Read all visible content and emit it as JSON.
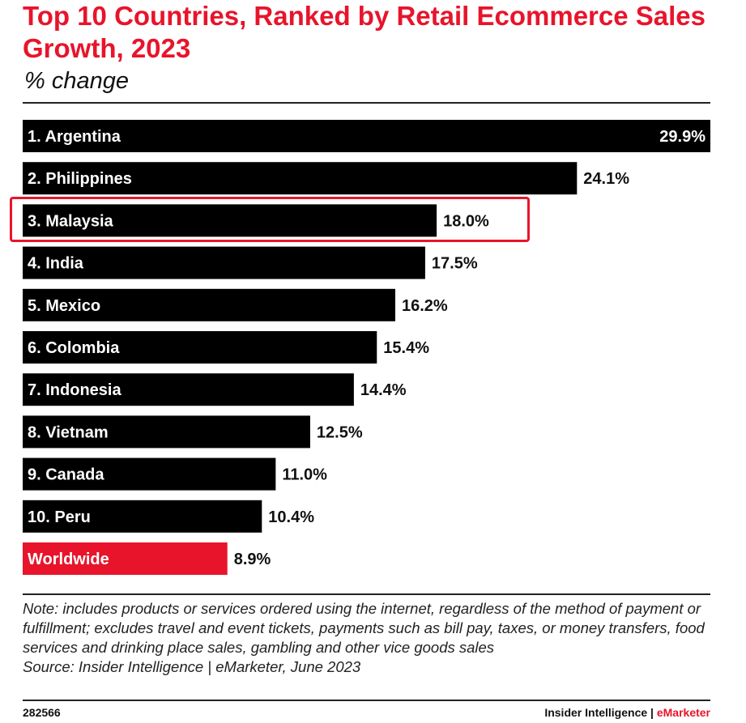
{
  "title": "Top 10 Countries, Ranked by Retail Ecommerce Sales Growth, 2023",
  "subtitle": "% change",
  "note": "Note: includes products or services ordered using the internet, regardless of the method of payment or fulfillment; excludes travel and event tickets, payments such as bill pay, taxes, or money transfers, food services and drinking place sales, gambling and other vice goods sales",
  "source": "Source: Insider Intelligence | eMarketer, June 2023",
  "footer": {
    "chart_id": "282566",
    "brand_left": "Insider Intelligence | ",
    "brand_right": "eMarketer"
  },
  "colors": {
    "bar": "#000000",
    "highlight_bar": "#e8142b",
    "title": "#e8142b",
    "callout_box": "#e8142b"
  },
  "chart_data": {
    "type": "bar",
    "orientation": "horizontal",
    "categories": [
      "1. Argentina",
      "2. Philippines",
      "3. Malaysia",
      "4. India",
      "5. Mexico",
      "6. Colombia",
      "7. Indonesia",
      "8. Vietnam",
      "9. Canada",
      "10. Peru",
      "Worldwide"
    ],
    "values": [
      29.9,
      24.1,
      18.0,
      17.5,
      16.2,
      15.4,
      14.4,
      12.5,
      11.0,
      10.4,
      8.9
    ],
    "value_labels": [
      "29.9%",
      "24.1%",
      "18.0%",
      "17.5%",
      "16.2%",
      "15.4%",
      "14.4%",
      "12.5%",
      "11.0%",
      "10.4%",
      "8.9%"
    ],
    "highlighted_bar": "Worldwide",
    "callout_category": "3. Malaysia",
    "xlim": [
      0,
      29.9
    ],
    "grid": false
  }
}
